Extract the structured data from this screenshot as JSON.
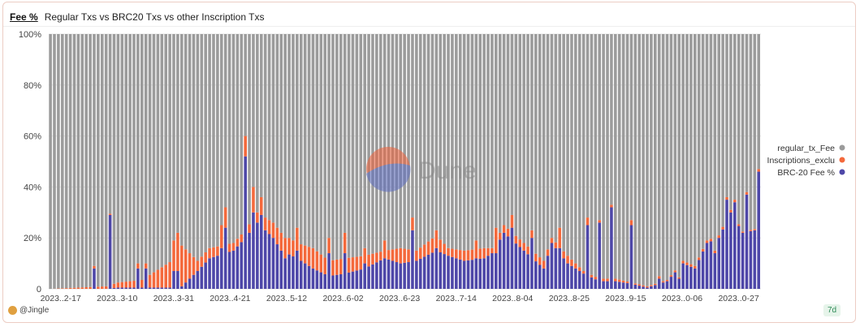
{
  "header": {
    "tab": "Fee %",
    "title": "Regular Txs vs BRC20 Txs vs other Inscription Txs"
  },
  "footer": {
    "author": "@Jingle",
    "badge": "7d"
  },
  "watermark": "Dune",
  "colors": {
    "regular": "#9b9b9b",
    "inscriptions": "#f4693c",
    "brc20": "#4e47a8",
    "grid": "#e6e6e6",
    "watermark_blue": "#5d6cc0",
    "watermark_red": "#f0613a"
  },
  "chart_data": {
    "type": "bar",
    "stacked": true,
    "percent_stacked": true,
    "title": "",
    "xlabel": "",
    "ylabel": "",
    "ylim": [
      0,
      100
    ],
    "yticks": [
      "0",
      "20%",
      "40%",
      "60%",
      "80%",
      "100%"
    ],
    "xtick_labels": [
      "2023..2-17",
      "2023..3-10",
      "2023..3-31",
      "2023..4-21",
      "2023..5-12",
      "2023..6-02",
      "2023..6-23",
      "2023..7-14",
      "2023..8-04",
      "2023..8-25",
      "2023..9-15",
      "2023..0-06",
      "2023..0-27"
    ],
    "legend_position": "right",
    "series_names": [
      "regular_tx_Fee",
      "Inscriptions_exclu",
      "BRC-20 Fee %"
    ],
    "anchors": [
      [
        0,
        0,
        0
      ],
      [
        14,
        1,
        0
      ],
      [
        17,
        2,
        0.5
      ],
      [
        23,
        3,
        0.5
      ],
      [
        28,
        8,
        0.5
      ],
      [
        32,
        12,
        0.5
      ],
      [
        33,
        16,
        1
      ],
      [
        37,
        4,
        7
      ],
      [
        40,
        4,
        12
      ],
      [
        46,
        3,
        15
      ],
      [
        49,
        3,
        20
      ],
      [
        52,
        4,
        26
      ],
      [
        56,
        6,
        20
      ],
      [
        58,
        7,
        15
      ],
      [
        62,
        6,
        12
      ],
      [
        66,
        8,
        8
      ],
      [
        70,
        6,
        5
      ],
      [
        74,
        6,
        6
      ],
      [
        79,
        5,
        8
      ],
      [
        84,
        3,
        12
      ],
      [
        88,
        6,
        10
      ],
      [
        92,
        4,
        11
      ],
      [
        97,
        6,
        15
      ],
      [
        100,
        3,
        13
      ],
      [
        104,
        4,
        11
      ],
      [
        109,
        4,
        12
      ],
      [
        111,
        2,
        14
      ],
      [
        114,
        3,
        22
      ],
      [
        119,
        3,
        15
      ],
      [
        124,
        3,
        8
      ],
      [
        126,
        2,
        18
      ],
      [
        130,
        3,
        10
      ],
      [
        134,
        1,
        6
      ],
      [
        138,
        1,
        3
      ],
      [
        142,
        1,
        3
      ],
      [
        146,
        0.5,
        2
      ],
      [
        150,
        0.5,
        0.5
      ],
      [
        155,
        0.5,
        3
      ],
      [
        159,
        1,
        10
      ],
      [
        162,
        1,
        8
      ],
      [
        165,
        1,
        18
      ],
      [
        168,
        1,
        20
      ],
      [
        171,
        1,
        30
      ],
      [
        174,
        0.5,
        22
      ],
      [
        177,
        0.5,
        23
      ]
    ],
    "spikes": [
      [
        11,
        1,
        8
      ],
      [
        15,
        0.5,
        29
      ],
      [
        22,
        2,
        8
      ],
      [
        24,
        2,
        8
      ],
      [
        31,
        12,
        7
      ],
      [
        32,
        15,
        7
      ],
      [
        43,
        9,
        16
      ],
      [
        44,
        8,
        24
      ],
      [
        49,
        8,
        52
      ],
      [
        51,
        10,
        30
      ],
      [
        53,
        7,
        29
      ],
      [
        59,
        8,
        12
      ],
      [
        62,
        9,
        15
      ],
      [
        70,
        6,
        14
      ],
      [
        74,
        8,
        14
      ],
      [
        79,
        6,
        10
      ],
      [
        84,
        7,
        12
      ],
      [
        91,
        5,
        23
      ],
      [
        97,
        7,
        16
      ],
      [
        107,
        7,
        12
      ],
      [
        112,
        10,
        14
      ],
      [
        116,
        5,
        24
      ],
      [
        121,
        3,
        20
      ],
      [
        128,
        8,
        16
      ],
      [
        135,
        3,
        25
      ],
      [
        138,
        1,
        26
      ],
      [
        141,
        1,
        32
      ],
      [
        146,
        2,
        25
      ],
      [
        153,
        1,
        4
      ],
      [
        158,
        0.5,
        4
      ],
      [
        167,
        1,
        14
      ],
      [
        170,
        1,
        35
      ],
      [
        172,
        1,
        34
      ],
      [
        175,
        1,
        37
      ],
      [
        178,
        1,
        46
      ]
    ],
    "n_bars": 179
  }
}
